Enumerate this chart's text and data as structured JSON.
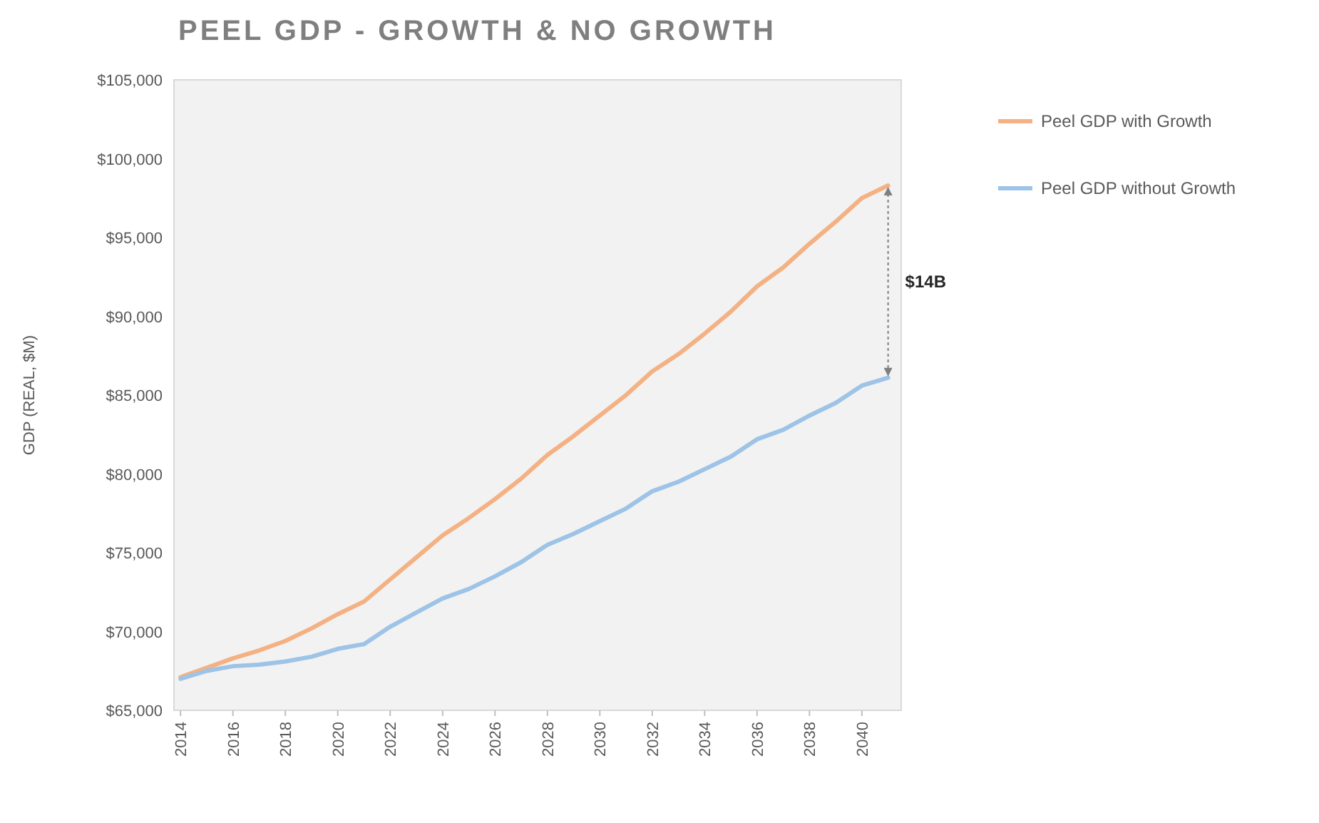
{
  "chart_data": {
    "type": "line",
    "title": "PEEL GDP - GROWTH & NO GROWTH",
    "ylabel": "GDP (REAL, $M)",
    "x": [
      2014,
      2015,
      2016,
      2017,
      2018,
      2019,
      2020,
      2021,
      2022,
      2023,
      2024,
      2025,
      2026,
      2027,
      2028,
      2029,
      2030,
      2031,
      2032,
      2033,
      2034,
      2035,
      2036,
      2037,
      2038,
      2039,
      2040,
      2041
    ],
    "series": [
      {
        "name": "Peel GDP with Growth",
        "color": "#f4b183",
        "values": [
          67100,
          67700,
          68300,
          68800,
          69400,
          70200,
          71100,
          71900,
          73300,
          74700,
          76100,
          77200,
          78400,
          79700,
          81200,
          82400,
          83700,
          85000,
          86500,
          87600,
          88900,
          90300,
          91900,
          93100,
          94600,
          96000,
          97500,
          98300
        ]
      },
      {
        "name": "Peel GDP without Growth",
        "color": "#9dc3e6",
        "values": [
          67000,
          67500,
          67800,
          67900,
          68100,
          68400,
          68900,
          69200,
          70300,
          71200,
          72100,
          72700,
          73500,
          74400,
          75500,
          76200,
          77000,
          77800,
          78900,
          79500,
          80300,
          81100,
          82200,
          82800,
          83700,
          84500,
          85600,
          86100
        ]
      }
    ],
    "xlim": [
      2013.75,
      2041.5
    ],
    "xticks": [
      2014,
      2016,
      2018,
      2020,
      2022,
      2024,
      2026,
      2028,
      2030,
      2032,
      2034,
      2036,
      2038,
      2040
    ],
    "ylim": [
      65000,
      105000
    ],
    "yticks": [
      {
        "value": 65000,
        "label": "$65,000"
      },
      {
        "value": 70000,
        "label": "$70,000"
      },
      {
        "value": 75000,
        "label": "$75,000"
      },
      {
        "value": 80000,
        "label": "$80,000"
      },
      {
        "value": 85000,
        "label": "$85,000"
      },
      {
        "value": 90000,
        "label": "$90,000"
      },
      {
        "value": 95000,
        "label": "$95,000"
      },
      {
        "value": 100000,
        "label": "$100,000"
      },
      {
        "value": 105000,
        "label": "$105,000"
      }
    ],
    "annotations": [
      "$14B"
    ],
    "legend": "right",
    "grid": false,
    "line_style": "solid",
    "marker": "none"
  }
}
